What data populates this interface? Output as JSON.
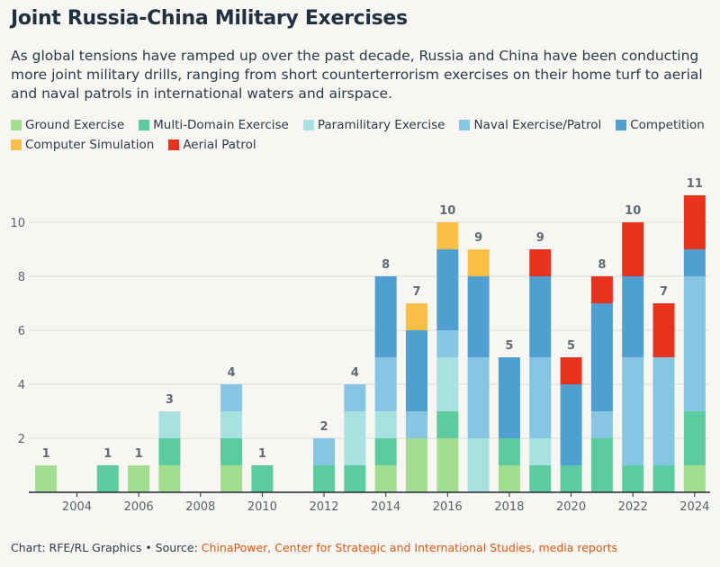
{
  "title": "Joint Russia-China Military Exercises",
  "subtitle": "As global tensions have ramped up over the past decade, Russia and China have been conducting more joint military drills, ranging from short counterterrorism exercises on their home turf to aerial and naval patrols in international waters and airspace.",
  "footer": {
    "prefix": "Chart: RFE/RL Graphics • Source: ",
    "source": "ChinaPower, Center for Strategic and International Studies, media reports"
  },
  "colors": {
    "background": "#f7f6f2",
    "source_link": "#e0580f"
  },
  "chart_data": {
    "type": "bar",
    "stacked": true,
    "categories": [
      2003,
      2004,
      2005,
      2006,
      2007,
      2008,
      2009,
      2010,
      2011,
      2012,
      2013,
      2014,
      2015,
      2016,
      2017,
      2018,
      2019,
      2020,
      2021,
      2022,
      2023,
      2024
    ],
    "x_tick_labels": [
      "2004",
      "2006",
      "2008",
      "2010",
      "2012",
      "2014",
      "2016",
      "2018",
      "2020",
      "2022",
      "2024"
    ],
    "y_tick_labels": [
      "2",
      "4",
      "6",
      "8",
      "10"
    ],
    "ylim": [
      0,
      11
    ],
    "grid": true,
    "legend_position": "top",
    "totals": [
      1,
      0,
      1,
      1,
      3,
      0,
      4,
      1,
      0,
      2,
      4,
      8,
      7,
      10,
      9,
      5,
      9,
      5,
      8,
      10,
      7,
      11
    ],
    "total_labels": [
      "1",
      "",
      "1",
      "1",
      "3",
      "",
      "4",
      "1",
      "",
      "2",
      "4",
      "8",
      "7",
      "10",
      "9",
      "5",
      "9",
      "5",
      "8",
      "10",
      "7",
      "11"
    ],
    "series": [
      {
        "name": "Ground Exercise",
        "color": "#a3dd8f",
        "values": [
          1,
          0,
          0,
          1,
          1,
          0,
          1,
          0,
          0,
          0,
          0,
          1,
          2,
          2,
          0,
          1,
          0,
          0,
          0,
          0,
          0,
          1
        ]
      },
      {
        "name": "Multi-Domain Exercise",
        "color": "#5ccb9f",
        "values": [
          0,
          0,
          1,
          0,
          1,
          0,
          1,
          1,
          0,
          1,
          1,
          1,
          0,
          1,
          0,
          1,
          1,
          1,
          2,
          1,
          1,
          2
        ]
      },
      {
        "name": "Paramilitary Exercise",
        "color": "#a9e0e0",
        "values": [
          0,
          0,
          0,
          0,
          1,
          0,
          1,
          0,
          0,
          0,
          2,
          1,
          0,
          2,
          2,
          0,
          1,
          0,
          0,
          0,
          0,
          0
        ]
      },
      {
        "name": "Naval Exercise/Patrol",
        "color": "#86c6e2",
        "values": [
          0,
          0,
          0,
          0,
          0,
          0,
          1,
          0,
          0,
          1,
          1,
          2,
          1,
          1,
          3,
          0,
          3,
          0,
          1,
          4,
          4,
          5
        ]
      },
      {
        "name": "Competition",
        "color": "#4f9fd0",
        "values": [
          0,
          0,
          0,
          0,
          0,
          0,
          0,
          0,
          0,
          0,
          0,
          3,
          3,
          3,
          3,
          3,
          3,
          3,
          4,
          3,
          0,
          1
        ]
      },
      {
        "name": "Computer Simulation",
        "color": "#fbbf47",
        "values": [
          0,
          0,
          0,
          0,
          0,
          0,
          0,
          0,
          0,
          0,
          0,
          0,
          1,
          1,
          1,
          0,
          0,
          0,
          0,
          0,
          0,
          0
        ]
      },
      {
        "name": "Aerial Patrol",
        "color": "#e8331c",
        "values": [
          0,
          0,
          0,
          0,
          0,
          0,
          0,
          0,
          0,
          0,
          0,
          0,
          0,
          0,
          0,
          0,
          1,
          1,
          1,
          2,
          2,
          2
        ]
      }
    ]
  }
}
